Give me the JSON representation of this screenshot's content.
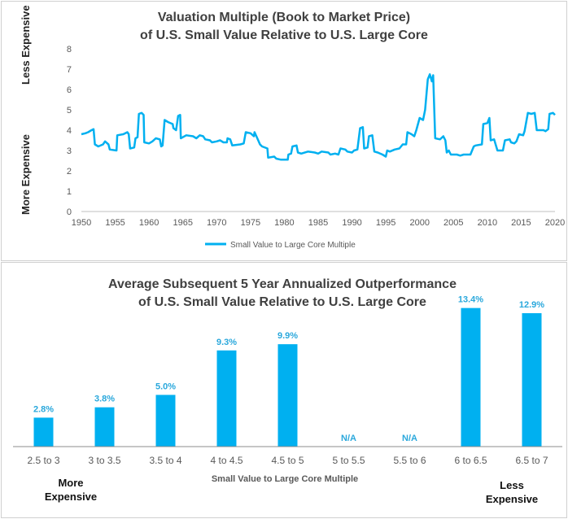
{
  "colors": {
    "series": "#00b0f0",
    "label": "#2aa8dc",
    "grid": "#d9d9d9",
    "axis": "#bfbfbf"
  },
  "top": {
    "side_labels": {
      "top": "Less Expensive",
      "bottom": "More Expensive"
    }
  },
  "bottom": {
    "corner_labels": {
      "left_line1": "More",
      "left_line2": "Expensive",
      "right_line1": "Less",
      "right_line2": "Expensive"
    }
  },
  "chart_data": [
    {
      "type": "line",
      "title": [
        "Valuation Multiple (Book to Market Price)",
        "of U.S. Small Value Relative to U.S. Large Core"
      ],
      "xlabel": "",
      "ylabel": "",
      "xlim": [
        1950,
        2020
      ],
      "ylim": [
        0,
        8
      ],
      "xticks": [
        1950,
        1955,
        1960,
        1965,
        1970,
        1975,
        1980,
        1985,
        1990,
        1995,
        2000,
        2005,
        2010,
        2015,
        2020
      ],
      "yticks": [
        0,
        1,
        2,
        3,
        4,
        5,
        6,
        7,
        8
      ],
      "grid": false,
      "legend": "bottom-center",
      "series": [
        {
          "name": "Small Value to Large Core Multiple",
          "points": [
            [
              1950.0,
              3.8
            ],
            [
              1950.6,
              3.85
            ],
            [
              1951.0,
              3.9
            ],
            [
              1951.5,
              4.0
            ],
            [
              1951.8,
              4.05
            ],
            [
              1952.0,
              3.3
            ],
            [
              1952.5,
              3.2
            ],
            [
              1953.2,
              3.3
            ],
            [
              1953.5,
              3.45
            ],
            [
              1954.0,
              3.3
            ],
            [
              1954.2,
              3.05
            ],
            [
              1955.2,
              3.0
            ],
            [
              1955.3,
              3.75
            ],
            [
              1956.2,
              3.8
            ],
            [
              1956.8,
              3.9
            ],
            [
              1957.0,
              3.8
            ],
            [
              1957.2,
              3.1
            ],
            [
              1957.8,
              3.15
            ],
            [
              1958.0,
              3.6
            ],
            [
              1958.3,
              3.65
            ],
            [
              1958.5,
              4.8
            ],
            [
              1958.9,
              4.85
            ],
            [
              1959.2,
              4.75
            ],
            [
              1959.3,
              3.4
            ],
            [
              1960.0,
              3.35
            ],
            [
              1960.5,
              3.45
            ],
            [
              1961.0,
              3.6
            ],
            [
              1961.6,
              3.55
            ],
            [
              1961.8,
              3.2
            ],
            [
              1962.0,
              3.25
            ],
            [
              1962.3,
              4.5
            ],
            [
              1962.8,
              4.4
            ],
            [
              1963.5,
              4.3
            ],
            [
              1963.6,
              4.1
            ],
            [
              1964.0,
              4.0
            ],
            [
              1964.3,
              4.7
            ],
            [
              1964.6,
              4.75
            ],
            [
              1964.7,
              3.6
            ],
            [
              1965.5,
              3.75
            ],
            [
              1966.5,
              3.7
            ],
            [
              1967.0,
              3.6
            ],
            [
              1967.5,
              3.75
            ],
            [
              1968.0,
              3.7
            ],
            [
              1968.3,
              3.55
            ],
            [
              1969.0,
              3.5
            ],
            [
              1969.3,
              3.4
            ],
            [
              1970.0,
              3.45
            ],
            [
              1970.5,
              3.5
            ],
            [
              1971.0,
              3.4
            ],
            [
              1971.5,
              3.4
            ],
            [
              1971.6,
              3.6
            ],
            [
              1972.0,
              3.55
            ],
            [
              1972.3,
              3.25
            ],
            [
              1973.5,
              3.3
            ],
            [
              1974.0,
              3.35
            ],
            [
              1974.3,
              3.9
            ],
            [
              1975.0,
              3.85
            ],
            [
              1975.5,
              3.7
            ],
            [
              1975.6,
              3.9
            ],
            [
              1976.0,
              3.6
            ],
            [
              1976.4,
              3.3
            ],
            [
              1976.7,
              3.2
            ],
            [
              1977.5,
              3.1
            ],
            [
              1977.6,
              2.65
            ],
            [
              1978.5,
              2.7
            ],
            [
              1978.8,
              2.6
            ],
            [
              1979.5,
              2.55
            ],
            [
              1980.5,
              2.55
            ],
            [
              1980.6,
              2.8
            ],
            [
              1981.0,
              2.85
            ],
            [
              1981.2,
              3.2
            ],
            [
              1981.8,
              3.25
            ],
            [
              1982.0,
              2.9
            ],
            [
              1982.5,
              2.85
            ],
            [
              1983.5,
              2.95
            ],
            [
              1984.5,
              2.9
            ],
            [
              1985.0,
              2.85
            ],
            [
              1985.5,
              2.95
            ],
            [
              1986.5,
              2.9
            ],
            [
              1986.8,
              2.8
            ],
            [
              1987.5,
              2.85
            ],
            [
              1988.0,
              2.8
            ],
            [
              1988.3,
              3.1
            ],
            [
              1989.0,
              3.05
            ],
            [
              1989.3,
              2.95
            ],
            [
              1990.0,
              2.9
            ],
            [
              1990.3,
              3.0
            ],
            [
              1990.8,
              3.05
            ],
            [
              1991.2,
              4.1
            ],
            [
              1991.6,
              4.15
            ],
            [
              1991.8,
              3.1
            ],
            [
              1992.3,
              3.15
            ],
            [
              1992.5,
              3.7
            ],
            [
              1993.0,
              3.75
            ],
            [
              1993.3,
              2.95
            ],
            [
              1993.8,
              2.9
            ],
            [
              1994.5,
              2.8
            ],
            [
              1995.0,
              2.7
            ],
            [
              1995.2,
              3.0
            ],
            [
              1995.6,
              2.95
            ],
            [
              1996.3,
              3.05
            ],
            [
              1997.0,
              3.1
            ],
            [
              1997.5,
              3.3
            ],
            [
              1998.0,
              3.3
            ],
            [
              1998.2,
              3.9
            ],
            [
              1998.8,
              3.8
            ],
            [
              1999.2,
              3.7
            ],
            [
              1999.5,
              4.0
            ],
            [
              2000.0,
              4.6
            ],
            [
              2000.5,
              4.5
            ],
            [
              2000.8,
              5.0
            ],
            [
              2001.2,
              6.5
            ],
            [
              2001.5,
              6.75
            ],
            [
              2001.8,
              6.4
            ],
            [
              2002.0,
              6.7
            ],
            [
              2002.3,
              3.6
            ],
            [
              2003.0,
              3.55
            ],
            [
              2003.5,
              3.7
            ],
            [
              2003.8,
              3.5
            ],
            [
              2004.0,
              2.9
            ],
            [
              2004.3,
              3.0
            ],
            [
              2004.6,
              2.8
            ],
            [
              2005.5,
              2.8
            ],
            [
              2006.0,
              2.75
            ],
            [
              2006.5,
              2.8
            ],
            [
              2007.5,
              2.8
            ],
            [
              2008.0,
              3.2
            ],
            [
              2008.3,
              3.25
            ],
            [
              2009.2,
              3.3
            ],
            [
              2009.4,
              4.3
            ],
            [
              2010.0,
              4.35
            ],
            [
              2010.3,
              4.6
            ],
            [
              2010.5,
              3.5
            ],
            [
              2011.0,
              3.55
            ],
            [
              2011.5,
              3.0
            ],
            [
              2012.3,
              3.0
            ],
            [
              2012.6,
              3.5
            ],
            [
              2013.3,
              3.55
            ],
            [
              2013.5,
              3.4
            ],
            [
              2014.0,
              3.35
            ],
            [
              2014.3,
              3.45
            ],
            [
              2014.7,
              3.8
            ],
            [
              2015.3,
              3.75
            ],
            [
              2015.5,
              3.95
            ],
            [
              2016.0,
              4.85
            ],
            [
              2016.5,
              4.8
            ],
            [
              2017.0,
              4.85
            ],
            [
              2017.3,
              4.0
            ],
            [
              2018.3,
              4.0
            ],
            [
              2018.6,
              3.95
            ],
            [
              2019.0,
              4.05
            ],
            [
              2019.2,
              4.8
            ],
            [
              2019.7,
              4.85
            ],
            [
              2020.0,
              4.75
            ]
          ]
        }
      ]
    },
    {
      "type": "bar",
      "title": [
        "Average Subsequent 5 Year Annualized Outperformance",
        "of U.S. Small Value Relative to U.S. Large Core"
      ],
      "xlabel": "Small Value to Large Core Multiple",
      "ylabel": "",
      "ylim": [
        0,
        14
      ],
      "grid": false,
      "categories": [
        "2.5 to 3",
        "3 to 3.5",
        "3.5 to 4",
        "4 to 4.5",
        "4.5 to 5",
        "5 to 5.5",
        "5.5 to 6",
        "6 to 6.5",
        "6.5 to 7"
      ],
      "values": [
        2.8,
        3.8,
        5.0,
        9.3,
        9.9,
        null,
        null,
        13.4,
        12.9
      ],
      "data_labels": [
        "2.8%",
        "3.8%",
        "5.0%",
        "9.3%",
        "9.9%",
        "N/A",
        "N/A",
        "13.4%",
        "12.9%"
      ]
    }
  ]
}
